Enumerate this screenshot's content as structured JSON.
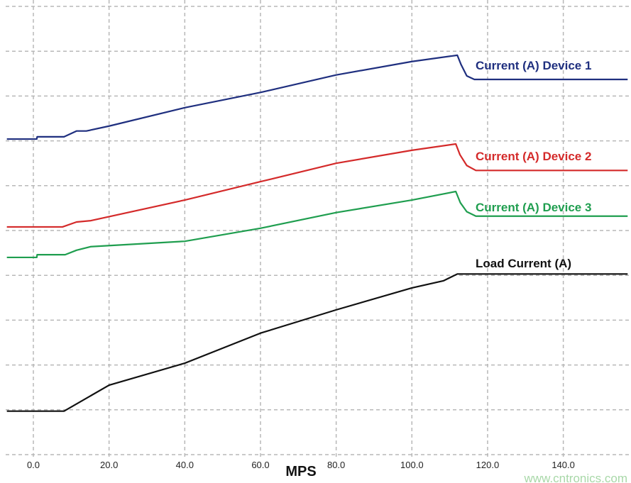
{
  "chart_data": {
    "type": "line",
    "title": "",
    "xlabel": "MPS",
    "ylabel": "",
    "xlim": [
      -7,
      157
    ],
    "ylim": [
      0,
      10
    ],
    "grid": true,
    "x_ticks": [
      0,
      20,
      40,
      60,
      80,
      100,
      120,
      140
    ],
    "x_tick_labels": [
      "0.0",
      "20.0",
      "40.0",
      "60.0",
      "80.0",
      "100.0",
      "120.0",
      "140.0"
    ],
    "y_gridlines": [
      0,
      1,
      2,
      3,
      4,
      5,
      6,
      7,
      8,
      9,
      10
    ],
    "legend": "inline labels at right",
    "series": [
      {
        "name": "Current (A) Device 1",
        "color": "#1f2f7f",
        "points": [
          [
            -7,
            7.04
          ],
          [
            0.9,
            7.04
          ],
          [
            1,
            7.09
          ],
          [
            8.1,
            7.09
          ],
          [
            11.4,
            7.22
          ],
          [
            14,
            7.22
          ],
          [
            20,
            7.33
          ],
          [
            40,
            7.74
          ],
          [
            60,
            8.08
          ],
          [
            80,
            8.47
          ],
          [
            100,
            8.77
          ],
          [
            112,
            8.91
          ],
          [
            113,
            8.7
          ],
          [
            114.5,
            8.45
          ],
          [
            116.5,
            8.37
          ],
          [
            157,
            8.37
          ]
        ]
      },
      {
        "name": "Current (A) Device 2",
        "color": "#d42a2a",
        "points": [
          [
            -7,
            5.08
          ],
          [
            7.7,
            5.08
          ],
          [
            11.4,
            5.19
          ],
          [
            15.2,
            5.22
          ],
          [
            40,
            5.68
          ],
          [
            60,
            6.09
          ],
          [
            80,
            6.5
          ],
          [
            100,
            6.79
          ],
          [
            111.6,
            6.93
          ],
          [
            112.7,
            6.69
          ],
          [
            114.5,
            6.45
          ],
          [
            116.9,
            6.34
          ],
          [
            157,
            6.34
          ]
        ]
      },
      {
        "name": "Current (A) Device 3",
        "color": "#1f9e4f",
        "points": [
          [
            -7,
            4.4
          ],
          [
            0.9,
            4.4
          ],
          [
            1,
            4.46
          ],
          [
            8.4,
            4.46
          ],
          [
            11.4,
            4.56
          ],
          [
            15.2,
            4.64
          ],
          [
            40,
            4.76
          ],
          [
            60,
            5.05
          ],
          [
            80,
            5.4
          ],
          [
            100,
            5.68
          ],
          [
            111.6,
            5.87
          ],
          [
            112.8,
            5.62
          ],
          [
            114.5,
            5.42
          ],
          [
            116.9,
            5.32
          ],
          [
            157,
            5.32
          ]
        ]
      },
      {
        "name": "Load Current (A)",
        "color": "#111111",
        "points": [
          [
            -7,
            0.97
          ],
          [
            8.1,
            0.97
          ],
          [
            20,
            1.55
          ],
          [
            40,
            2.04
          ],
          [
            60,
            2.71
          ],
          [
            80,
            3.23
          ],
          [
            100,
            3.72
          ],
          [
            108.4,
            3.88
          ],
          [
            112,
            4.03
          ],
          [
            157,
            4.03
          ]
        ]
      }
    ]
  },
  "watermark": "www.cntronics.com"
}
